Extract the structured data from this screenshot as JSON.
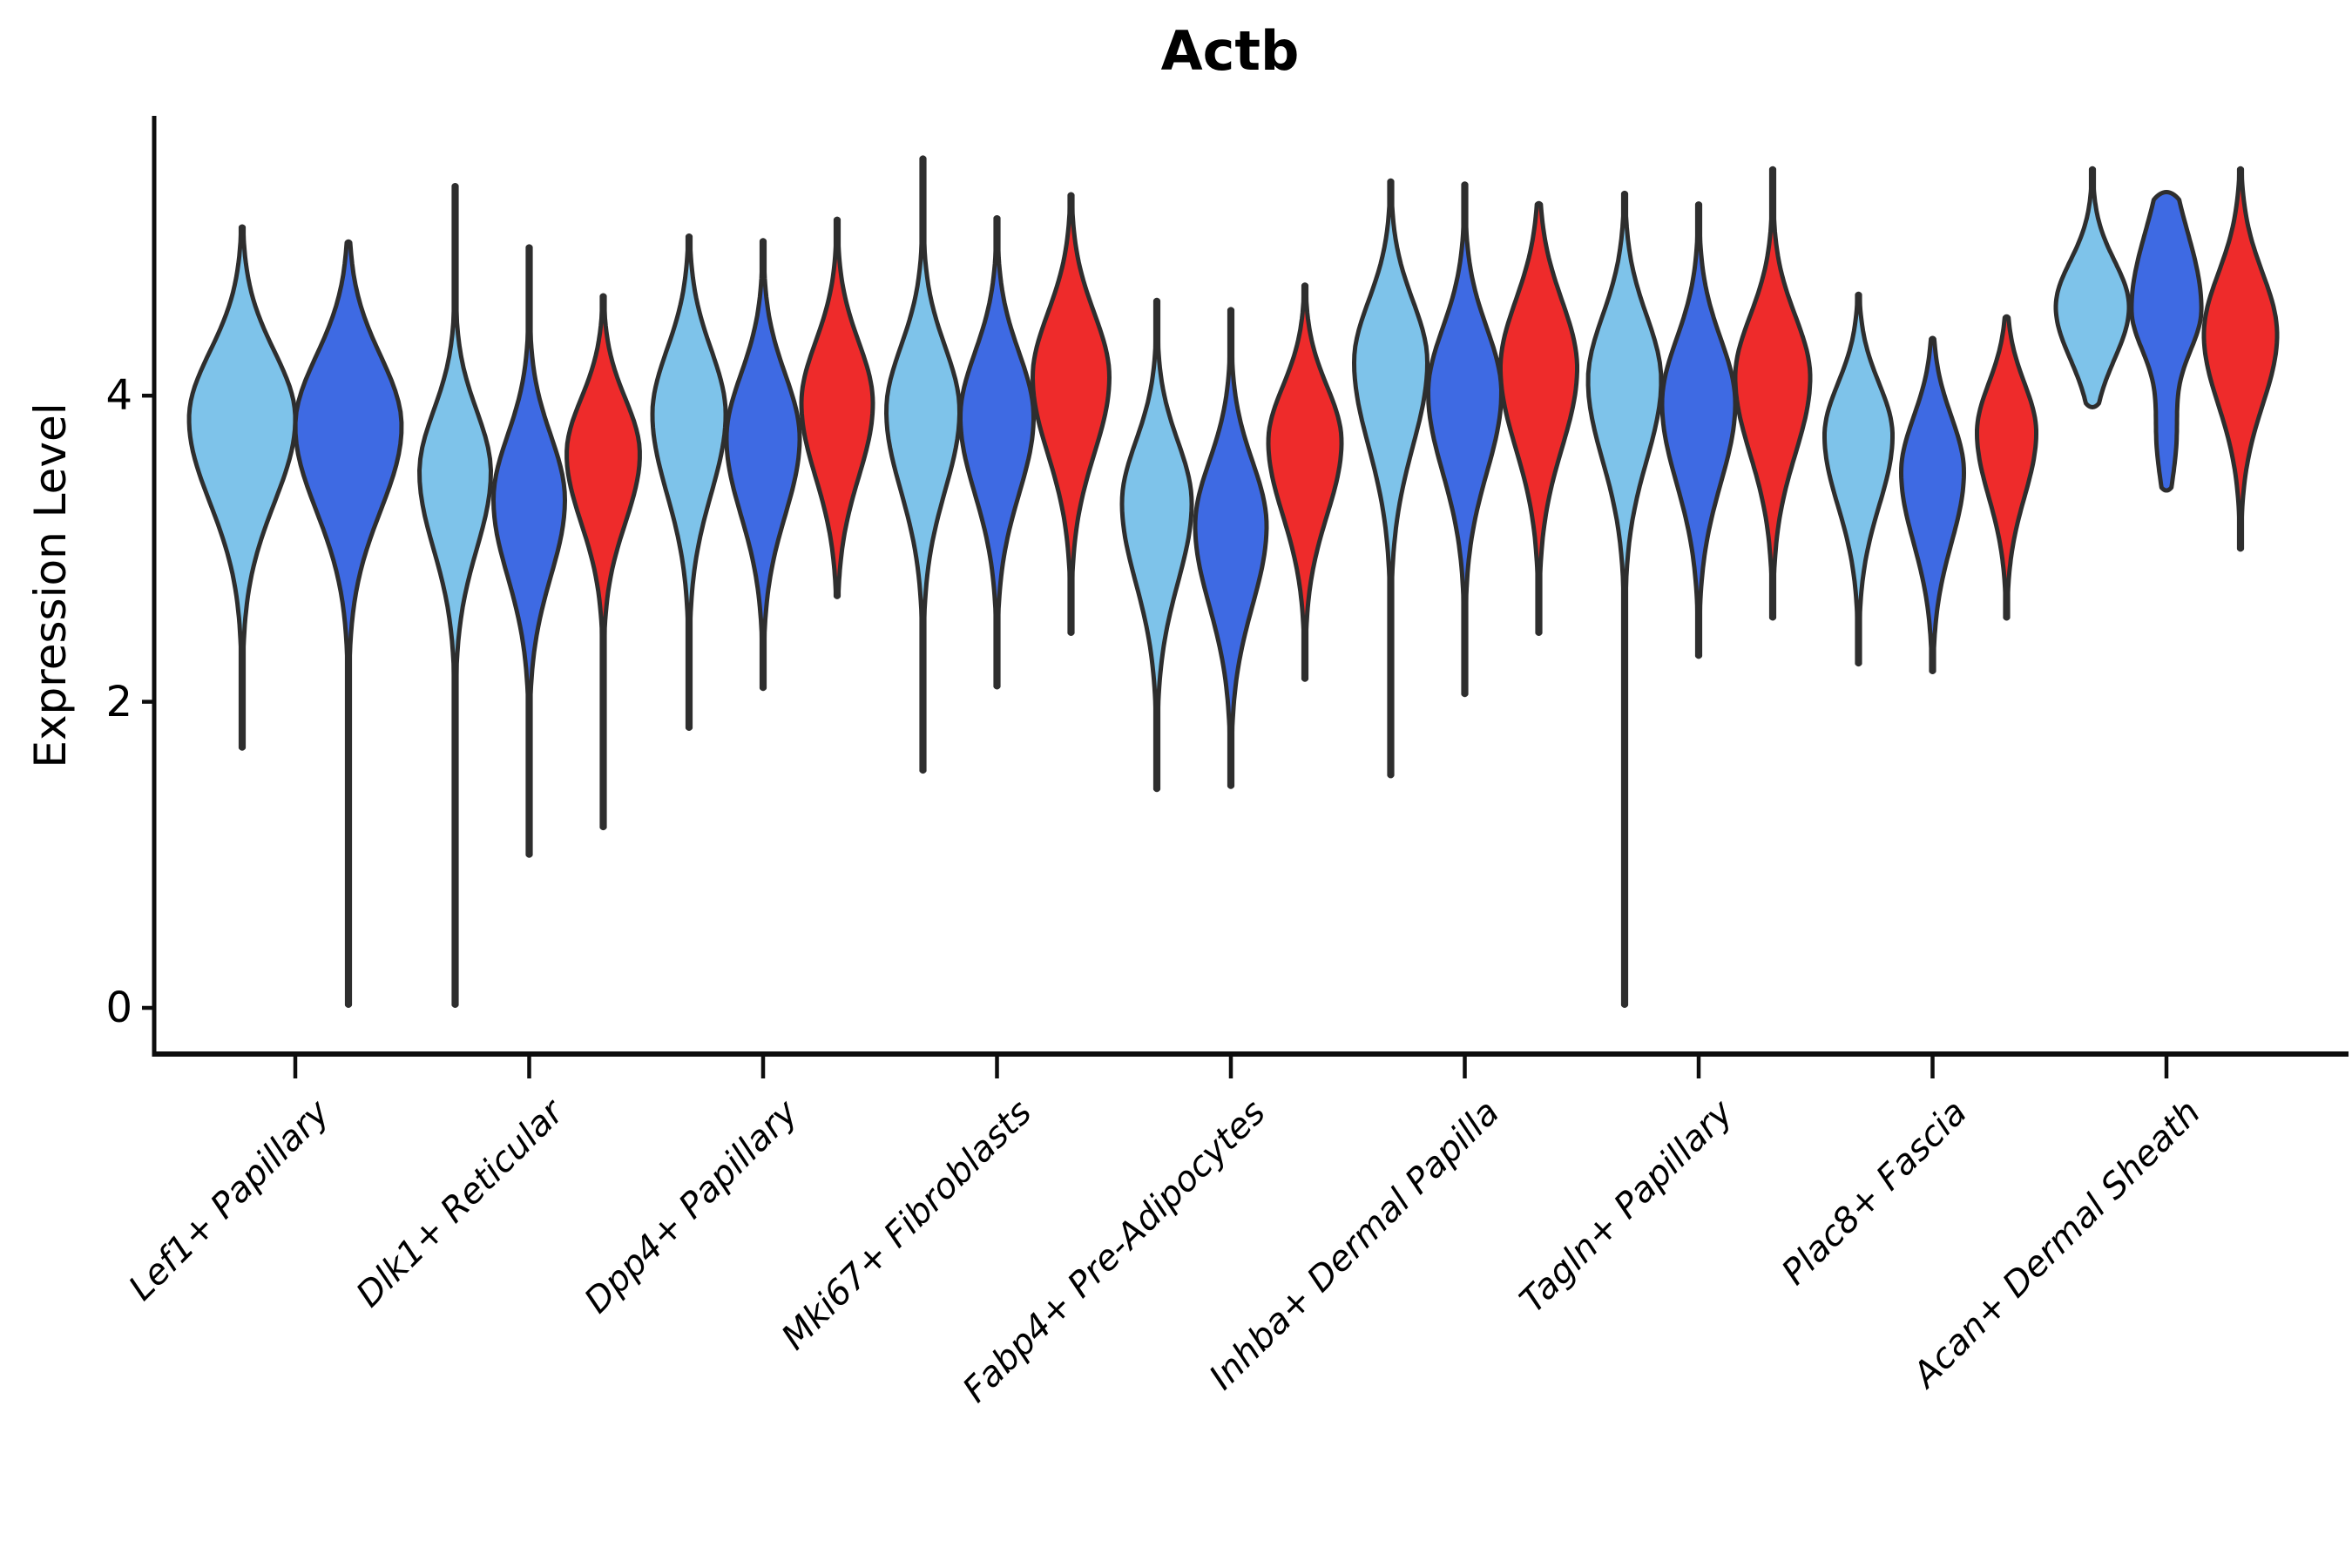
{
  "title": "Actb",
  "axes": {
    "ylabel": "Expression Level",
    "yticks": [
      {
        "label": "0",
        "value": 0
      },
      {
        "label": "2",
        "value": 2
      },
      {
        "label": "4",
        "value": 4
      }
    ]
  },
  "palette": {
    "series1": "#7EC3EA",
    "series2": "#3E6AE3",
    "series3": "#EE2B2B",
    "violin_outline": "#2E2E2E",
    "axis_color": "#0D0D0D",
    "background": "#FFFFFF"
  },
  "chart_data": {
    "type": "violin",
    "title": "Actb",
    "xlabel": "",
    "ylabel": "Expression Level",
    "yticks": [
      0,
      2,
      4
    ],
    "ylim": [
      -0.45,
      5.9
    ],
    "grid": false,
    "legend": "none",
    "series_colors": [
      "#7EC3EA",
      "#3E6AE3",
      "#EE2B2B"
    ],
    "categories": [
      "Lef1+ Papillary",
      "Dlk1+ Reticular",
      "Dpp4+ Papillary",
      "Mki67+ Fibroblasts",
      "Fabp4+ Pre-Adipocytes",
      "Inhba+ Dermal Papilla",
      "Tagln+ Papillary",
      "Plac8+ Fascia",
      "Acan+ Dermal Sheath"
    ],
    "groups": [
      {
        "category": "Lef1+ Papillary",
        "violins": [
          {
            "series": 0,
            "offset": -61,
            "max": 5.1,
            "peak": 3.85,
            "min": 1.7,
            "sigma_up": 0.44,
            "sigma_down": 0.55,
            "width": 122
          },
          {
            "series": 1,
            "offset": 61,
            "max": 5.0,
            "peak": 3.8,
            "min": 0.02,
            "sigma_up": 0.46,
            "sigma_down": 0.55,
            "width": 122
          }
        ]
      },
      {
        "category": "Dlk1+ Reticular",
        "violins": [
          {
            "series": 0,
            "offset": -85,
            "max": 5.37,
            "peak": 3.5,
            "min": 0.02,
            "sigma_up": 0.4,
            "sigma_down": 0.5,
            "width": 82
          },
          {
            "series": 1,
            "offset": 0,
            "max": 4.97,
            "peak": 3.32,
            "min": 1.0,
            "sigma_up": 0.42,
            "sigma_down": 0.5,
            "width": 82
          },
          {
            "series": 2,
            "offset": 85,
            "max": 4.65,
            "peak": 3.62,
            "min": 1.18,
            "sigma_up": 0.36,
            "sigma_down": 0.45,
            "width": 84
          }
        ]
      },
      {
        "category": "Dpp4+ Papillary",
        "violins": [
          {
            "series": 0,
            "offset": -85,
            "max": 5.04,
            "peak": 3.88,
            "min": 1.83,
            "sigma_up": 0.42,
            "sigma_down": 0.52,
            "width": 84
          },
          {
            "series": 1,
            "offset": 0,
            "max": 5.01,
            "peak": 3.72,
            "min": 2.09,
            "sigma_up": 0.42,
            "sigma_down": 0.5,
            "width": 84
          },
          {
            "series": 2,
            "offset": 85,
            "max": 5.15,
            "peak": 3.95,
            "min": 2.69,
            "sigma_up": 0.4,
            "sigma_down": 0.48,
            "width": 82
          }
        ]
      },
      {
        "category": "Mki67+ Fibroblasts",
        "violins": [
          {
            "series": 0,
            "offset": -85,
            "max": 5.55,
            "peak": 3.9,
            "min": 1.55,
            "sigma_up": 0.42,
            "sigma_down": 0.52,
            "width": 84
          },
          {
            "series": 1,
            "offset": 0,
            "max": 5.16,
            "peak": 3.86,
            "min": 2.1,
            "sigma_up": 0.42,
            "sigma_down": 0.5,
            "width": 84
          },
          {
            "series": 2,
            "offset": 85,
            "max": 5.31,
            "peak": 4.12,
            "min": 2.45,
            "sigma_up": 0.42,
            "sigma_down": 0.5,
            "width": 88
          }
        ]
      },
      {
        "category": "Fabp4+ Pre-Adipocytes",
        "violins": [
          {
            "series": 0,
            "offset": -85,
            "max": 4.62,
            "peak": 3.3,
            "min": 1.43,
            "sigma_up": 0.4,
            "sigma_down": 0.52,
            "width": 80
          },
          {
            "series": 1,
            "offset": 0,
            "max": 4.56,
            "peak": 3.15,
            "min": 1.45,
            "sigma_up": 0.42,
            "sigma_down": 0.52,
            "width": 82
          },
          {
            "series": 2,
            "offset": 85,
            "max": 4.72,
            "peak": 3.7,
            "min": 2.15,
            "sigma_up": 0.36,
            "sigma_down": 0.48,
            "width": 84
          }
        ]
      },
      {
        "category": "Inhba+ Dermal Papilla",
        "violins": [
          {
            "series": 0,
            "offset": -85,
            "max": 5.4,
            "peak": 4.22,
            "min": 1.52,
            "sigma_up": 0.4,
            "sigma_down": 0.55,
            "width": 84
          },
          {
            "series": 1,
            "offset": 0,
            "max": 5.38,
            "peak": 4.02,
            "min": 2.05,
            "sigma_up": 0.42,
            "sigma_down": 0.52,
            "width": 84
          },
          {
            "series": 2,
            "offset": 85,
            "max": 5.25,
            "peak": 4.18,
            "min": 2.45,
            "sigma_up": 0.44,
            "sigma_down": 0.52,
            "width": 88
          }
        ]
      },
      {
        "category": "Tagln+ Papillary",
        "violins": [
          {
            "series": 0,
            "offset": -85,
            "max": 5.32,
            "peak": 4.1,
            "min": 0.02,
            "sigma_up": 0.42,
            "sigma_down": 0.52,
            "width": 84
          },
          {
            "series": 1,
            "offset": 0,
            "max": 5.25,
            "peak": 3.95,
            "min": 2.3,
            "sigma_up": 0.42,
            "sigma_down": 0.52,
            "width": 84
          },
          {
            "series": 2,
            "offset": 85,
            "max": 5.48,
            "peak": 4.12,
            "min": 2.55,
            "sigma_up": 0.4,
            "sigma_down": 0.5,
            "width": 86
          }
        ]
      },
      {
        "category": "Plac8+ Fascia",
        "violins": [
          {
            "series": 0,
            "offset": -85,
            "max": 4.66,
            "peak": 3.74,
            "min": 2.25,
            "sigma_up": 0.34,
            "sigma_down": 0.46,
            "width": 78
          },
          {
            "series": 1,
            "offset": 0,
            "max": 4.37,
            "peak": 3.5,
            "min": 2.2,
            "sigma_up": 0.36,
            "sigma_down": 0.46,
            "width": 72
          },
          {
            "series": 2,
            "offset": 85,
            "max": 4.51,
            "peak": 3.76,
            "min": 2.55,
            "sigma_up": 0.32,
            "sigma_down": 0.42,
            "width": 68
          }
        ]
      },
      {
        "category": "Acan+ Dermal Sheath",
        "violins": [
          {
            "series": 0,
            "offset": -85,
            "max": 5.48,
            "peak": 4.58,
            "min": 3.95,
            "sigma_up": 0.3,
            "sigma_down": 0.34,
            "width": 84
          },
          {
            "series": 1,
            "offset": 0,
            "max": 5.28,
            "peak": 4.57,
            "min": 3.4,
            "sigma_up": 0.5,
            "sigma_down": 0.3,
            "width": 80,
            "bump": {
              "peak": 3.72,
              "sigma": 0.28,
              "amp": 11
            }
          },
          {
            "series": 2,
            "offset": 85,
            "max": 5.48,
            "peak": 4.4,
            "min": 3.0,
            "sigma_up": 0.4,
            "sigma_down": 0.46,
            "width": 84
          }
        ]
      }
    ]
  }
}
